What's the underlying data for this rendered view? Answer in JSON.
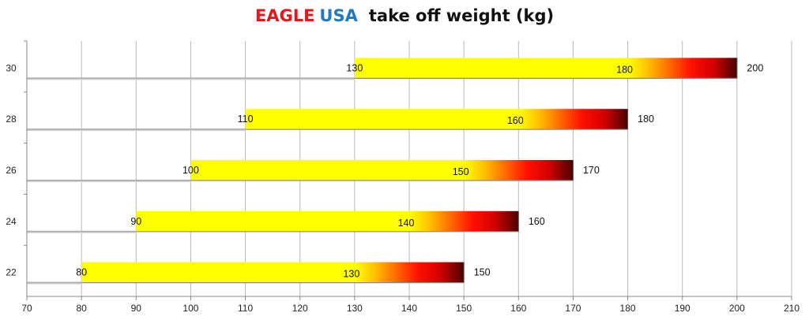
{
  "title": {
    "part1": "EAGLE",
    "part2": "USA",
    "part3": "take off weight (kg)",
    "part1_color": "#e8151b",
    "part2_color": "#1f7ac2",
    "part3_color": "#111111"
  },
  "chart_data": {
    "type": "bar",
    "orientation": "horizontal",
    "categories": [
      "22",
      "24",
      "26",
      "28",
      "30"
    ],
    "series": [
      {
        "start": 80,
        "mid": 130,
        "end": 150
      },
      {
        "start": 90,
        "mid": 140,
        "end": 160
      },
      {
        "start": 100,
        "mid": 150,
        "end": 170
      },
      {
        "start": 110,
        "mid": 160,
        "end": 180
      },
      {
        "start": 130,
        "mid": 180,
        "end": 200
      }
    ],
    "xlim": [
      70,
      210
    ],
    "xticks": [
      70,
      80,
      90,
      100,
      110,
      120,
      130,
      140,
      150,
      160,
      170,
      180,
      190,
      200,
      210
    ],
    "grid": "vertical",
    "bar_colors": {
      "base": "#ffff00",
      "gradient": [
        "#ffff00",
        "#ffb000",
        "#ff5a00",
        "#ff0000",
        "#d00000",
        "#5a0000"
      ]
    }
  }
}
